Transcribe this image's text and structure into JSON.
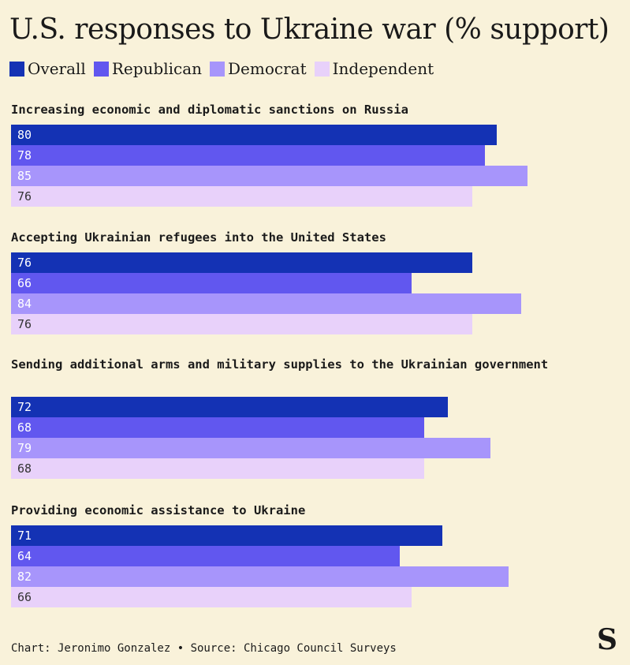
{
  "chart_data": {
    "type": "bar",
    "orientation": "horizontal",
    "title": "U.S. responses to Ukraine war (% support)",
    "xlim": [
      0,
      100
    ],
    "series": [
      {
        "name": "Overall",
        "color": "#1432b4"
      },
      {
        "name": "Republican",
        "color": "#6157ef"
      },
      {
        "name": "Democrat",
        "color": "#a795fb"
      },
      {
        "name": "Independent",
        "color": "#e8d1fa"
      }
    ],
    "groups": [
      {
        "label": "Increasing economic and diplomatic sanctions on Russia",
        "values": [
          80,
          78,
          85,
          76
        ]
      },
      {
        "label": "Accepting Ukrainian refugees into the United States",
        "values": [
          76,
          66,
          84,
          76
        ]
      },
      {
        "label": "Sending additional arms and military supplies to the Ukrainian government",
        "values": [
          72,
          68,
          79,
          68
        ]
      },
      {
        "label": "Providing economic assistance to Ukraine",
        "values": [
          71,
          64,
          82,
          66
        ]
      }
    ]
  },
  "footer": {
    "text": "Chart: Jeronimo Gonzalez • Source: Chicago Council Surveys"
  },
  "logo": {
    "glyph": "S"
  }
}
